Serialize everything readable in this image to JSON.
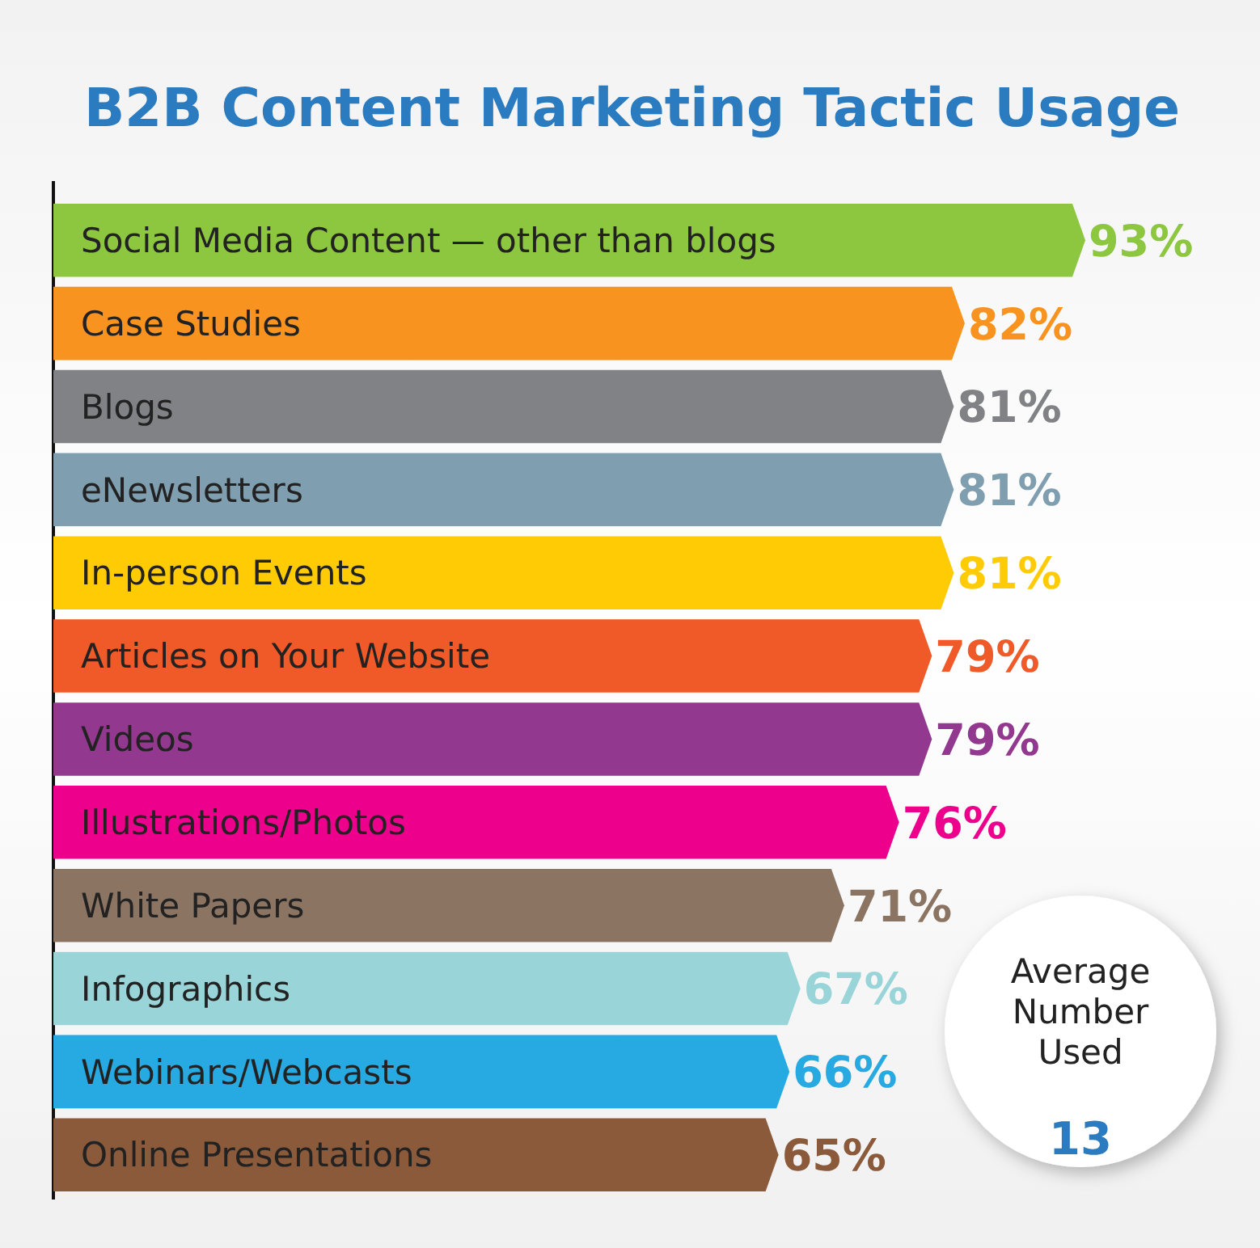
{
  "chart_data": {
    "type": "bar",
    "orientation": "horizontal",
    "title": "B2B Content Marketing Tactic Usage",
    "categories": [
      "Social Media Content — other than blogs",
      "Case Studies",
      "Blogs",
      "eNewsletters",
      "In-person Events",
      "Articles on Your Website",
      "Videos",
      "Illustrations/Photos",
      "White Papers",
      "Infographics",
      "Webinars/Webcasts",
      "Online Presentations"
    ],
    "values": [
      93,
      82,
      81,
      81,
      81,
      79,
      79,
      76,
      71,
      67,
      66,
      65
    ],
    "value_labels": [
      "93%",
      "82%",
      "81%",
      "81%",
      "81%",
      "79%",
      "79%",
      "76%",
      "71%",
      "67%",
      "66%",
      "65%"
    ],
    "colors": [
      "#8dc63f",
      "#f7931e",
      "#808285",
      "#7f9fb0",
      "#ffcb05",
      "#f05a28",
      "#92388e",
      "#ec008c",
      "#8c7463",
      "#99d5d8",
      "#27aae1",
      "#8b5a3a"
    ],
    "annotations": [
      "Average Number Used",
      "13"
    ]
  }
}
